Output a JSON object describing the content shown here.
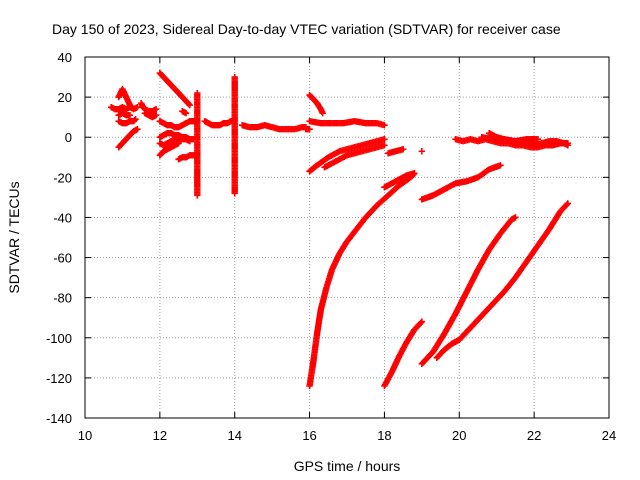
{
  "chart_data": {
    "type": "scatter",
    "title": "Day 150 of 2023, Sidereal Day-to-day VTEC variation (SDTVAR) for receiver case",
    "xlabel": "GPS time / hours",
    "ylabel": "SDTVAR / TECUs",
    "xlim": [
      10,
      24
    ],
    "ylim": [
      -140,
      40
    ],
    "xticks": [
      10,
      12,
      14,
      16,
      18,
      20,
      22,
      24
    ],
    "xtick_labels": [
      "10",
      "12",
      "14",
      "16",
      "18",
      "20",
      "22",
      "24"
    ],
    "yticks": [
      -140,
      -120,
      -100,
      -80,
      -60,
      -40,
      -20,
      0,
      20,
      40
    ],
    "ytick_labels": [
      "-140",
      "-120",
      "-100",
      "-80",
      "-60",
      "-40",
      "-20",
      "0",
      "20",
      "40"
    ],
    "grid": true,
    "marker": "plus",
    "color": "#ff0000",
    "series": [
      {
        "name": "seg-a",
        "points": [
          [
            10.9,
            20
          ],
          [
            11.0,
            24
          ],
          [
            11.05,
            22
          ],
          [
            11.1,
            20
          ],
          [
            11.15,
            18
          ],
          [
            11.2,
            16
          ],
          [
            11.25,
            15
          ]
        ]
      },
      {
        "name": "seg-b",
        "points": [
          [
            10.7,
            15
          ],
          [
            10.8,
            14
          ],
          [
            10.9,
            14
          ],
          [
            11.0,
            15
          ],
          [
            11.1,
            14
          ],
          [
            11.2,
            15
          ],
          [
            11.3,
            14
          ],
          [
            11.4,
            15
          ]
        ]
      },
      {
        "name": "seg-c",
        "points": [
          [
            10.9,
            11
          ],
          [
            11.0,
            12
          ],
          [
            11.1,
            11
          ],
          [
            11.2,
            11
          ]
        ]
      },
      {
        "name": "seg-d",
        "points": [
          [
            10.9,
            8
          ],
          [
            11.0,
            7
          ],
          [
            11.1,
            7
          ],
          [
            11.2,
            8
          ],
          [
            11.3,
            8
          ],
          [
            11.35,
            9
          ]
        ]
      },
      {
        "name": "seg-e",
        "points": [
          [
            10.9,
            -5
          ],
          [
            11.0,
            -3
          ],
          [
            11.1,
            -1
          ],
          [
            11.2,
            1
          ],
          [
            11.3,
            3
          ],
          [
            11.4,
            4
          ]
        ]
      },
      {
        "name": "seg-f",
        "points": [
          [
            11.5,
            17
          ],
          [
            11.55,
            15
          ],
          [
            11.6,
            14
          ],
          [
            11.7,
            13
          ],
          [
            11.8,
            13
          ],
          [
            11.9,
            14
          ]
        ]
      },
      {
        "name": "seg-g",
        "points": [
          [
            11.6,
            12
          ],
          [
            11.7,
            11
          ],
          [
            11.8,
            10
          ],
          [
            11.9,
            11
          ]
        ]
      },
      {
        "name": "seg-h",
        "points": [
          [
            12.0,
            32
          ],
          [
            12.1,
            30
          ],
          [
            12.2,
            28
          ],
          [
            12.3,
            26
          ],
          [
            12.4,
            24
          ],
          [
            12.5,
            22
          ],
          [
            12.6,
            20
          ],
          [
            12.7,
            18
          ],
          [
            12.8,
            16
          ]
        ]
      },
      {
        "name": "seg-i",
        "points": [
          [
            12.0,
            8
          ],
          [
            12.1,
            7
          ],
          [
            12.2,
            6
          ],
          [
            12.3,
            6
          ],
          [
            12.4,
            5
          ],
          [
            12.5,
            5
          ],
          [
            12.6,
            6
          ],
          [
            12.7,
            7
          ],
          [
            12.8,
            8
          ],
          [
            12.9,
            8
          ],
          [
            13.0,
            7
          ]
        ]
      },
      {
        "name": "seg-j",
        "points": [
          [
            12.0,
            0
          ],
          [
            12.1,
            1
          ],
          [
            12.2,
            2
          ],
          [
            12.3,
            2
          ],
          [
            12.4,
            1
          ],
          [
            12.5,
            1
          ],
          [
            12.6,
            0
          ],
          [
            12.7,
            0
          ],
          [
            12.8,
            -1
          ],
          [
            12.9,
            -1
          ]
        ]
      },
      {
        "name": "seg-k",
        "points": [
          [
            12.0,
            -3
          ],
          [
            12.1,
            -4
          ],
          [
            12.2,
            -3
          ],
          [
            12.3,
            -2
          ],
          [
            12.4,
            -1
          ],
          [
            12.5,
            -1
          ],
          [
            12.6,
            -1
          ],
          [
            12.7,
            -1
          ],
          [
            12.8,
            -2
          ]
        ]
      },
      {
        "name": "seg-l",
        "points": [
          [
            12.0,
            -9
          ],
          [
            12.1,
            -7
          ],
          [
            12.2,
            -6
          ],
          [
            12.3,
            -5
          ],
          [
            12.4,
            -4
          ],
          [
            12.5,
            -3
          ]
        ]
      },
      {
        "name": "seg-m",
        "points": [
          [
            12.5,
            -11
          ],
          [
            12.6,
            -10
          ],
          [
            12.7,
            -10
          ],
          [
            12.8,
            -9
          ],
          [
            12.9,
            -9
          ],
          [
            13.0,
            -10
          ]
        ]
      },
      {
        "name": "seg-n",
        "points": [
          [
            12.6,
            13
          ],
          [
            12.7,
            12
          ]
        ]
      },
      {
        "name": "seg-o",
        "points": [
          [
            13.0,
            22
          ],
          [
            13.0,
            -17
          ],
          [
            13.0,
            -29
          ]
        ]
      },
      {
        "name": "seg-p",
        "points": [
          [
            13.2,
            8
          ],
          [
            13.3,
            7
          ],
          [
            13.4,
            6
          ],
          [
            13.5,
            6
          ],
          [
            13.6,
            6
          ],
          [
            13.7,
            7
          ],
          [
            13.8,
            7
          ],
          [
            13.9,
            8
          ]
        ]
      },
      {
        "name": "seg-q",
        "points": [
          [
            14.0,
            30
          ],
          [
            14.0,
            17
          ],
          [
            14.0,
            -4
          ],
          [
            14.0,
            -28
          ]
        ]
      },
      {
        "name": "seg-r",
        "points": [
          [
            14.2,
            6
          ],
          [
            14.4,
            5
          ],
          [
            14.6,
            5
          ],
          [
            14.8,
            6
          ],
          [
            15.0,
            5
          ],
          [
            15.2,
            4
          ],
          [
            15.4,
            4
          ],
          [
            15.6,
            4
          ],
          [
            15.8,
            5
          ],
          [
            15.9,
            5
          ]
        ]
      },
      {
        "name": "seg-s",
        "points": [
          [
            15.9,
            4
          ],
          [
            16.0,
            4
          ]
        ]
      },
      {
        "name": "seg-t",
        "points": [
          [
            16.0,
            21
          ],
          [
            16.1,
            19
          ],
          [
            16.2,
            17
          ],
          [
            16.3,
            14
          ],
          [
            16.35,
            12
          ]
        ]
      },
      {
        "name": "seg-u",
        "points": [
          [
            16.0,
            8
          ],
          [
            16.3,
            7
          ],
          [
            16.6,
            7
          ],
          [
            16.9,
            7
          ],
          [
            17.2,
            8
          ],
          [
            17.5,
            7
          ],
          [
            17.8,
            7
          ],
          [
            18.0,
            6
          ]
        ]
      },
      {
        "name": "seg-v",
        "points": [
          [
            16.0,
            -17
          ],
          [
            16.2,
            -14
          ],
          [
            16.5,
            -10
          ],
          [
            16.8,
            -7
          ],
          [
            17.2,
            -5
          ],
          [
            17.6,
            -3
          ],
          [
            18.0,
            -1
          ]
        ]
      },
      {
        "name": "seg-w",
        "points": [
          [
            16.4,
            -15
          ],
          [
            16.7,
            -12
          ],
          [
            17.0,
            -9
          ],
          [
            17.4,
            -7
          ],
          [
            17.8,
            -5
          ],
          [
            18.0,
            -4
          ]
        ]
      },
      {
        "name": "seg-x",
        "points": [
          [
            18.1,
            -8
          ],
          [
            18.3,
            -7
          ],
          [
            18.5,
            -6
          ]
        ]
      },
      {
        "name": "seg-y",
        "points": [
          [
            16.0,
            -124
          ],
          [
            16.1,
            -112
          ],
          [
            16.2,
            -98
          ],
          [
            16.3,
            -86
          ],
          [
            16.45,
            -75
          ],
          [
            16.6,
            -66
          ],
          [
            16.8,
            -58
          ],
          [
            17.0,
            -52
          ],
          [
            17.25,
            -46
          ],
          [
            17.5,
            -40
          ],
          [
            17.8,
            -34
          ],
          [
            18.1,
            -29
          ],
          [
            18.4,
            -24
          ],
          [
            18.7,
            -20
          ],
          [
            18.8,
            -18
          ]
        ]
      },
      {
        "name": "seg-z",
        "points": [
          [
            18.0,
            -25
          ],
          [
            18.2,
            -23
          ],
          [
            18.4,
            -21
          ],
          [
            18.6,
            -19
          ],
          [
            18.8,
            -18
          ]
        ]
      },
      {
        "name": "seg-aa",
        "points": [
          [
            18.0,
            -124
          ],
          [
            18.2,
            -117
          ],
          [
            18.4,
            -109
          ],
          [
            18.6,
            -102
          ],
          [
            18.8,
            -96
          ],
          [
            19.0,
            -92
          ]
        ]
      },
      {
        "name": "seg-ab",
        "points": [
          [
            19.0,
            -113
          ],
          [
            19.3,
            -107
          ],
          [
            19.6,
            -98
          ],
          [
            19.9,
            -88
          ],
          [
            20.2,
            -77
          ],
          [
            20.5,
            -66
          ],
          [
            20.8,
            -56
          ],
          [
            21.1,
            -48
          ],
          [
            21.4,
            -41
          ],
          [
            21.5,
            -40
          ]
        ]
      },
      {
        "name": "seg-ac",
        "points": [
          [
            19.4,
            -110
          ],
          [
            19.6,
            -106
          ],
          [
            19.8,
            -103
          ],
          [
            20.0,
            -101
          ],
          [
            20.3,
            -95
          ],
          [
            20.6,
            -89
          ],
          [
            20.9,
            -83
          ],
          [
            21.2,
            -77
          ],
          [
            21.5,
            -70
          ],
          [
            21.8,
            -62
          ],
          [
            22.1,
            -54
          ],
          [
            22.4,
            -46
          ],
          [
            22.7,
            -37
          ],
          [
            22.9,
            -33
          ]
        ]
      },
      {
        "name": "seg-ad",
        "points": [
          [
            19.0,
            -7
          ]
        ]
      },
      {
        "name": "seg-ae",
        "points": [
          [
            19.0,
            -31
          ],
          [
            19.3,
            -29
          ],
          [
            19.6,
            -26
          ],
          [
            19.9,
            -23
          ],
          [
            20.2,
            -22
          ],
          [
            20.5,
            -20
          ],
          [
            20.8,
            -16
          ],
          [
            21.1,
            -14
          ]
        ]
      },
      {
        "name": "seg-af",
        "points": [
          [
            19.9,
            -1
          ],
          [
            20.1,
            -2
          ],
          [
            20.3,
            -1
          ],
          [
            20.5,
            -2
          ],
          [
            20.7,
            -1
          ],
          [
            20.9,
            -2
          ],
          [
            21.1,
            -3
          ],
          [
            21.3,
            -3
          ],
          [
            21.5,
            -4
          ],
          [
            21.7,
            -4
          ],
          [
            21.9,
            -5
          ],
          [
            22.1,
            -5
          ],
          [
            22.3,
            -4
          ],
          [
            22.5,
            -4
          ],
          [
            22.7,
            -3
          ],
          [
            22.9,
            -3
          ]
        ]
      },
      {
        "name": "seg-ag",
        "points": [
          [
            20.8,
            2
          ],
          [
            21.0,
            0
          ],
          [
            21.2,
            -1
          ],
          [
            21.4,
            -2
          ],
          [
            21.6,
            -3
          ],
          [
            21.8,
            -2
          ],
          [
            22.0,
            -4
          ],
          [
            22.2,
            -3
          ],
          [
            22.4,
            -2
          ],
          [
            22.6,
            -2
          ],
          [
            22.8,
            -3
          ],
          [
            22.9,
            -4
          ]
        ]
      },
      {
        "name": "seg-ah",
        "points": [
          [
            20.6,
            0
          ],
          [
            20.9,
            -1
          ],
          [
            21.2,
            -1
          ],
          [
            21.5,
            -2
          ],
          [
            21.8,
            -1
          ],
          [
            22.1,
            -1
          ]
        ]
      }
    ]
  }
}
